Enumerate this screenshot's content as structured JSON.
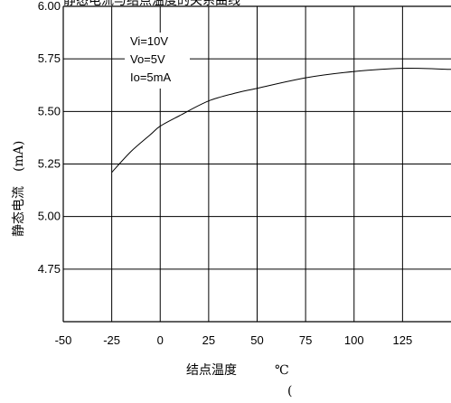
{
  "chart_data": {
    "type": "line",
    "title_fragment": "静态电流与结点温度的关系曲线",
    "xlabel": "结点温度",
    "xlabel_unit": "℃",
    "xlabel_extra": "(",
    "ylabel": "静态电流",
    "ylabel_unit": "(mA)",
    "xlim": [
      -50,
      150
    ],
    "ylim": [
      4.5,
      6.0
    ],
    "xticks": [
      "-50",
      "-25",
      "0",
      "25",
      "50",
      "75",
      "100",
      "125"
    ],
    "xtick_values": [
      -50,
      -25,
      0,
      25,
      50,
      75,
      100,
      125
    ],
    "yticks": [
      "4.75",
      "5.00",
      "5.25",
      "5.50",
      "5.75",
      "6.00"
    ],
    "ytick_values": [
      4.75,
      5.0,
      5.25,
      5.5,
      5.75,
      6.0
    ],
    "annotations": [
      "Vi=10V",
      "Vo=5V",
      "Io=5mA"
    ],
    "grid": true,
    "series": [
      {
        "x": [
          -25,
          -15,
          -5,
          0,
          10,
          25,
          40,
          50,
          75,
          100,
          125,
          150
        ],
        "values": [
          5.21,
          5.31,
          5.39,
          5.43,
          5.48,
          5.55,
          5.59,
          5.61,
          5.66,
          5.69,
          5.705,
          5.7
        ]
      }
    ]
  }
}
